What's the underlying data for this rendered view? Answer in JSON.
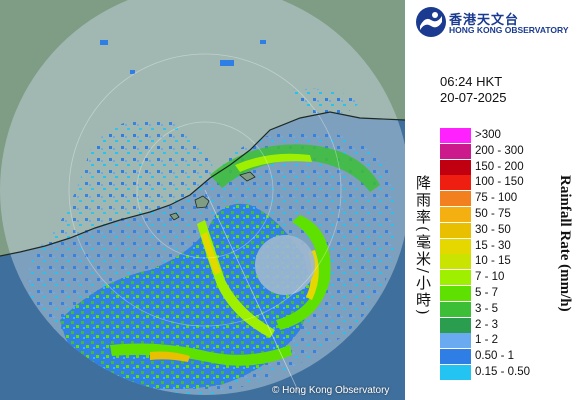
{
  "logo": {
    "name_zh": "香港天文台",
    "name_en": "HONG KONG OBSERVATORY"
  },
  "time": "06:24 HKT",
  "date": "20-07-2025",
  "credit": "© Hong Kong Observatory",
  "unit_zh": "降雨率(毫米/小時)",
  "unit_en": "Rainfall Rate (mm/h)",
  "legend": [
    {
      "label": ">300",
      "color": "#ff22ff"
    },
    {
      "label": "200 - 300",
      "color": "#cc1a8c"
    },
    {
      "label": "150 - 200",
      "color": "#c00010"
    },
    {
      "label": "100 - 150",
      "color": "#ee1f10"
    },
    {
      "label": "75 - 100",
      "color": "#f2801e"
    },
    {
      "label": "50 - 75",
      "color": "#f4b010"
    },
    {
      "label": "30 - 50",
      "color": "#e8c000"
    },
    {
      "label": "15 - 30",
      "color": "#e4d800"
    },
    {
      "label": "10 - 15",
      "color": "#c8e400"
    },
    {
      "label": "7 - 10",
      "color": "#9ef000"
    },
    {
      "label": "5 - 7",
      "color": "#5ee000"
    },
    {
      "label": "3 - 5",
      "color": "#3cbe36"
    },
    {
      "label": "2 - 3",
      "color": "#2a9e4e"
    },
    {
      "label": "1 - 2",
      "color": "#6aaaf0"
    },
    {
      "label": "0.50 - 1",
      "color": "#2e7ee6"
    },
    {
      "label": "0.15 - 0.50",
      "color": "#24c4f2"
    }
  ],
  "colors": {
    "sea": "#3f6f9c",
    "land": "#7f9c84",
    "range_disc": "#9eb7cf",
    "logo_blue": "#1a3b8f"
  }
}
